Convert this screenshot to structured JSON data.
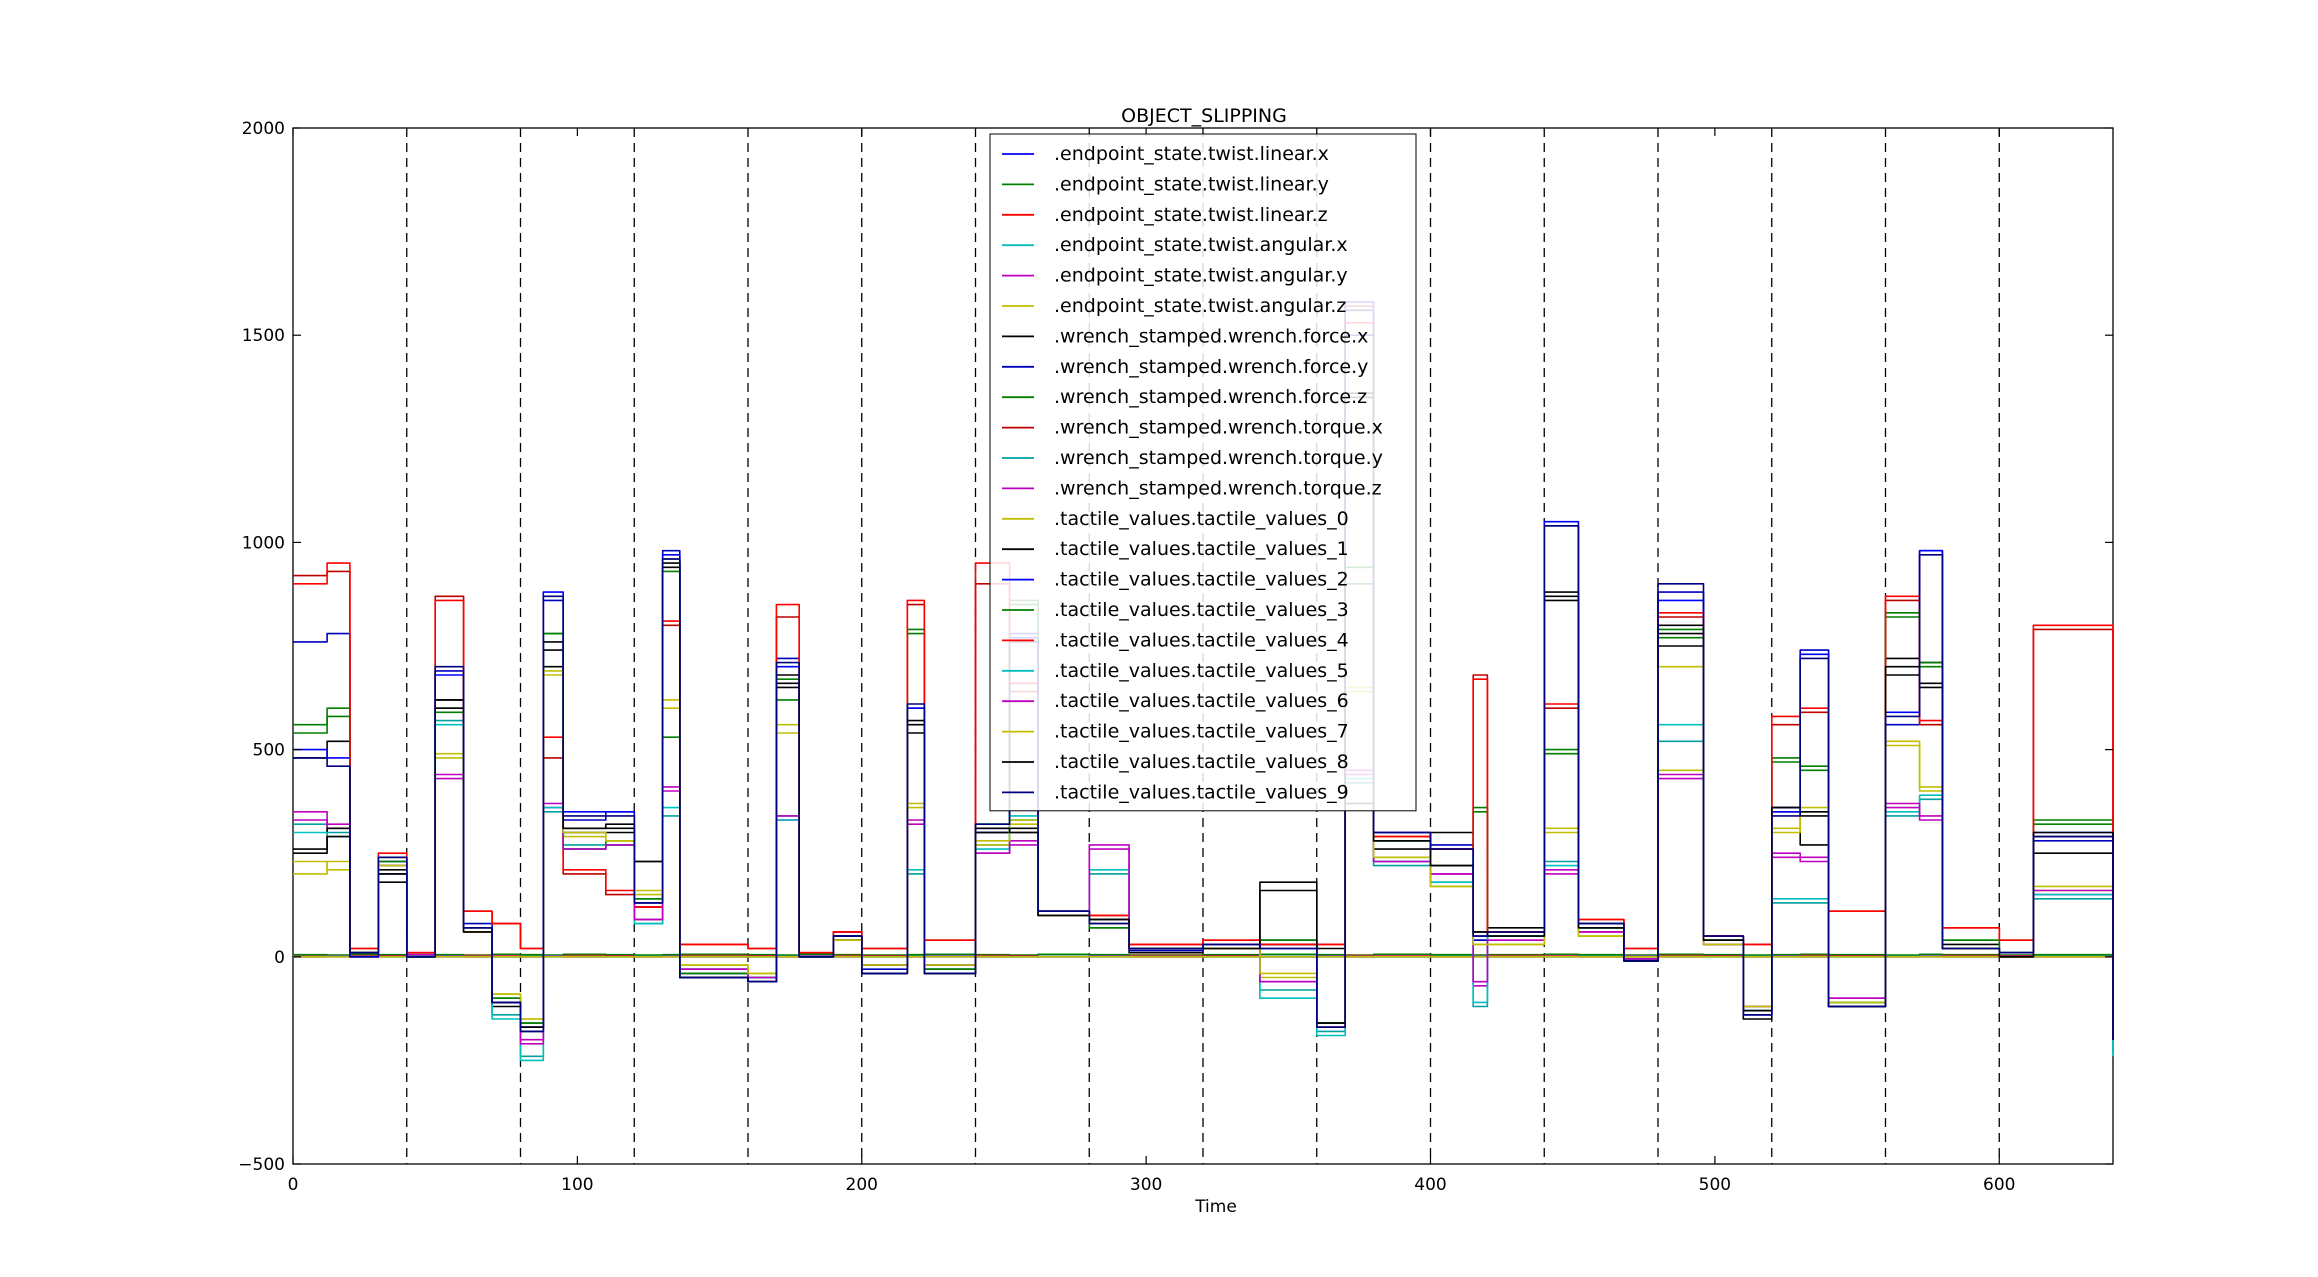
{
  "chart_data": {
    "type": "line",
    "title": "OBJECT_SLIPPING",
    "xlabel": "Time",
    "ylabel": "",
    "xlim": [
      0,
      640
    ],
    "ylim": [
      -500,
      2000
    ],
    "xticks": [
      0,
      100,
      200,
      300,
      400,
      500,
      600
    ],
    "yticks": [
      -500,
      0,
      500,
      1000,
      1500,
      2000
    ],
    "xtick_labels": [
      "0",
      "100",
      "200",
      "300",
      "400",
      "500",
      "600"
    ],
    "ytick_labels": [
      "−500",
      "0",
      "500",
      "1000",
      "1500",
      "2000"
    ],
    "grid": false,
    "legend_position": "upper-center",
    "vertical_dashed_lines": [
      40,
      80,
      120,
      160,
      200,
      240,
      280,
      320,
      360,
      400,
      440,
      480,
      520,
      560,
      600
    ],
    "segment_boundaries": [
      0,
      12,
      20,
      30,
      40,
      50,
      60,
      70,
      80,
      88,
      95,
      110,
      120,
      130,
      136,
      160,
      170,
      178,
      190,
      200,
      216,
      222,
      240,
      252,
      262,
      280,
      294,
      320,
      340,
      360,
      370,
      380,
      400,
      415,
      420,
      440,
      452,
      468,
      480,
      496,
      510,
      520,
      530,
      540,
      560,
      572,
      580,
      600,
      612,
      640
    ],
    "series": [
      {
        "name": ".endpoint_state.twist.linear.x",
        "color": "#0000ff",
        "values": [
          0,
          0,
          0,
          0,
          0,
          0,
          0,
          0,
          0,
          0,
          0,
          0,
          0,
          0,
          0,
          0,
          0,
          0,
          0,
          0,
          0,
          0,
          0,
          0,
          0,
          0,
          0,
          0,
          0,
          0,
          0,
          0,
          0,
          0,
          0,
          0,
          0,
          0,
          0,
          0,
          0,
          0,
          0,
          0,
          0,
          0,
          0,
          0,
          0,
          0
        ]
      },
      {
        "name": ".endpoint_state.twist.linear.y",
        "color": "#008000",
        "values": [
          5,
          4,
          6,
          5,
          3,
          5,
          4,
          6,
          5,
          4,
          6,
          5,
          4,
          5,
          6,
          5,
          4,
          6,
          5,
          4,
          5,
          6,
          5,
          4,
          6,
          5,
          4,
          5,
          6,
          5,
          4,
          6,
          5,
          4,
          5,
          6,
          5,
          4,
          6,
          5,
          4,
          5,
          6,
          5,
          4,
          6,
          5,
          4,
          5,
          6
        ]
      },
      {
        "name": ".endpoint_state.twist.linear.z",
        "color": "#ff0000",
        "values": [
          2,
          1,
          3,
          2,
          1,
          2,
          3,
          2,
          1,
          2,
          3,
          2,
          1,
          2,
          3,
          2,
          1,
          2,
          3,
          2,
          1,
          2,
          3,
          2,
          1,
          2,
          3,
          2,
          1,
          2,
          3,
          2,
          1,
          2,
          3,
          2,
          1,
          2,
          3,
          2,
          1,
          2,
          3,
          2,
          1,
          2,
          3,
          2,
          1,
          2
        ]
      },
      {
        "name": ".endpoint_state.twist.angular.x",
        "color": "#00bfbf",
        "values": [
          1,
          2,
          1,
          0,
          1,
          2,
          1,
          0,
          1,
          2,
          1,
          0,
          1,
          2,
          1,
          0,
          1,
          2,
          1,
          0,
          1,
          2,
          1,
          0,
          1,
          2,
          1,
          0,
          1,
          2,
          1,
          0,
          1,
          2,
          1,
          0,
          1,
          2,
          1,
          0,
          1,
          2,
          1,
          0,
          1,
          2,
          1,
          0,
          1,
          2
        ]
      },
      {
        "name": ".endpoint_state.twist.angular.y",
        "color": "#bf00bf",
        "values": [
          0,
          1,
          0,
          1,
          0,
          1,
          0,
          1,
          0,
          1,
          0,
          1,
          0,
          1,
          0,
          1,
          0,
          1,
          0,
          1,
          0,
          1,
          0,
          1,
          0,
          1,
          0,
          1,
          0,
          1,
          0,
          1,
          0,
          1,
          0,
          1,
          0,
          1,
          0,
          1,
          0,
          1,
          0,
          1,
          0,
          1,
          0,
          1,
          0,
          1
        ]
      },
      {
        "name": ".endpoint_state.twist.angular.z",
        "color": "#bfbf00",
        "values": [
          0,
          0,
          0,
          0,
          0,
          0,
          0,
          0,
          0,
          0,
          0,
          0,
          0,
          0,
          0,
          0,
          0,
          0,
          0,
          0,
          0,
          0,
          0,
          0,
          0,
          0,
          0,
          0,
          0,
          0,
          0,
          0,
          0,
          0,
          0,
          0,
          0,
          0,
          0,
          0,
          0,
          0,
          0,
          0,
          0,
          0,
          0,
          0,
          0,
          0
        ]
      },
      {
        "name": ".wrench_stamped.wrench.force.x",
        "color": "#000000",
        "values": [
          480,
          520,
          0,
          180,
          0,
          620,
          70,
          -120,
          -180,
          700,
          310,
          310,
          90,
          940,
          -50,
          -50,
          680,
          0,
          50,
          -40,
          540,
          -40,
          300,
          310,
          100,
          90,
          10,
          30,
          160,
          20,
          370,
          260,
          300,
          40,
          70,
          860,
          70,
          -5,
          750,
          40,
          -150,
          360,
          270,
          -120,
          680,
          710,
          30,
          0,
          250,
          20
        ]
      },
      {
        "name": ".wrench_stamped.wrench.force.y",
        "color": "#0000bf",
        "values": [
          760,
          780,
          0,
          200,
          0,
          690,
          80,
          -110,
          -170,
          860,
          330,
          350,
          120,
          980,
          -40,
          -60,
          720,
          0,
          60,
          -30,
          600,
          -30,
          300,
          780,
          110,
          80,
          15,
          20,
          40,
          -170,
          1500,
          300,
          270,
          40,
          60,
          1040,
          80,
          -10,
          880,
          50,
          -140,
          360,
          740,
          -120,
          560,
          980,
          20,
          10,
          280,
          -200
        ]
      },
      {
        "name": ".wrench_stamped.wrench.force.z",
        "color": "#007f00",
        "values": [
          540,
          600,
          10,
          240,
          5,
          590,
          60,
          -100,
          -160,
          780,
          260,
          280,
          140,
          930,
          -40,
          -50,
          670,
          0,
          40,
          -20,
          780,
          -30,
          320,
          860,
          100,
          70,
          20,
          30,
          40,
          -160,
          900,
          280,
          260,
          350,
          60,
          490,
          80,
          -10,
          770,
          40,
          -130,
          470,
          450,
          -110,
          820,
          710,
          40,
          10,
          320,
          -190
        ]
      },
      {
        "name": ".wrench_stamped.wrench.torque.x",
        "color": "#bf0000",
        "values": [
          920,
          930,
          20,
          240,
          10,
          870,
          110,
          80,
          20,
          480,
          200,
          150,
          120,
          800,
          30,
          20,
          820,
          10,
          60,
          20,
          850,
          40,
          900,
          640,
          110,
          100,
          30,
          40,
          30,
          30,
          1570,
          290,
          260,
          680,
          60,
          600,
          90,
          20,
          820,
          50,
          30,
          560,
          590,
          110,
          860,
          560,
          70,
          40,
          790,
          60
        ]
      },
      {
        "name": ".wrench_stamped.wrench.torque.y",
        "color": "#00a0a0",
        "values": [
          320,
          300,
          10,
          230,
          0,
          570,
          60,
          -140,
          -240,
          350,
          270,
          270,
          80,
          340,
          -30,
          -50,
          340,
          0,
          40,
          -20,
          200,
          -20,
          270,
          330,
          110,
          200,
          20,
          30,
          -80,
          -180,
          420,
          220,
          180,
          -120,
          50,
          230,
          70,
          -5,
          520,
          30,
          -130,
          130,
          130,
          -110,
          340,
          380,
          20,
          0,
          140,
          -230
        ]
      },
      {
        "name": ".wrench_stamped.wrench.torque.z",
        "color": "#bf00bf",
        "values": [
          330,
          310,
          10,
          220,
          5,
          430,
          60,
          -110,
          -200,
          360,
          260,
          270,
          90,
          400,
          -30,
          -50,
          330,
          0,
          40,
          -20,
          320,
          -20,
          250,
          270,
          100,
          260,
          20,
          30,
          -60,
          -170,
          440,
          230,
          200,
          -70,
          40,
          200,
          60,
          -5,
          430,
          30,
          -120,
          240,
          230,
          -100,
          360,
          330,
          20,
          0,
          150,
          -200
        ]
      },
      {
        "name": ".tactile_values.tactile_values_0",
        "color": "#bfbf00",
        "values": [
          230,
          210,
          10,
          230,
          0,
          490,
          60,
          -90,
          -150,
          680,
          290,
          280,
          150,
          600,
          -20,
          -40,
          560,
          0,
          40,
          -20,
          360,
          -20,
          270,
          320,
          100,
          80,
          20,
          20,
          -50,
          -170,
          650,
          240,
          170,
          30,
          30,
          300,
          50,
          0,
          450,
          30,
          -120,
          300,
          350,
          -110,
          520,
          400,
          20,
          0,
          160,
          -180
        ]
      },
      {
        "name": ".tactile_values.tactile_values_1",
        "color": "#000000",
        "values": [
          260,
          310,
          10,
          210,
          0,
          620,
          60,
          -110,
          -170,
          740,
          300,
          300,
          230,
          960,
          -50,
          -60,
          650,
          0,
          50,
          -40,
          560,
          -40,
          300,
          300,
          100,
          90,
          20,
          20,
          30,
          -160,
          1360,
          280,
          220,
          60,
          50,
          880,
          70,
          -10,
          780,
          40,
          -130,
          350,
          340,
          -120,
          720,
          650,
          20,
          0,
          290,
          -200
        ]
      },
      {
        "name": ".tactile_values.tactile_values_2",
        "color": "#0000ff",
        "values": [
          500,
          480,
          10,
          230,
          0,
          680,
          70,
          -110,
          -170,
          880,
          350,
          350,
          130,
          970,
          -50,
          -60,
          700,
          0,
          50,
          -40,
          600,
          -40,
          310,
          770,
          110,
          80,
          20,
          30,
          20,
          -170,
          1580,
          300,
          260,
          50,
          60,
          1050,
          80,
          -10,
          860,
          50,
          -140,
          350,
          730,
          -120,
          590,
          980,
          20,
          10,
          300,
          -200
        ]
      },
      {
        "name": ".tactile_values.tactile_values_3",
        "color": "#007f00",
        "values": [
          560,
          580,
          10,
          230,
          0,
          600,
          60,
          -100,
          -160,
          780,
          260,
          270,
          140,
          530,
          -40,
          -50,
          620,
          0,
          40,
          -20,
          790,
          -30,
          320,
          850,
          100,
          70,
          20,
          30,
          40,
          -160,
          940,
          280,
          260,
          360,
          60,
          500,
          80,
          -10,
          790,
          40,
          -130,
          480,
          460,
          -110,
          830,
          700,
          40,
          10,
          330,
          -190
        ]
      },
      {
        "name": ".tactile_values.tactile_values_4",
        "color": "#ff0000",
        "values": [
          900,
          950,
          20,
          250,
          10,
          860,
          110,
          80,
          20,
          530,
          210,
          160,
          120,
          810,
          30,
          20,
          850,
          10,
          60,
          20,
          860,
          40,
          950,
          660,
          110,
          100,
          30,
          40,
          30,
          30,
          1530,
          290,
          260,
          670,
          60,
          610,
          90,
          20,
          830,
          50,
          30,
          580,
          600,
          110,
          870,
          570,
          70,
          40,
          800,
          60
        ]
      },
      {
        "name": ".tactile_values.tactile_values_5",
        "color": "#00bfbf",
        "values": [
          300,
          290,
          10,
          220,
          0,
          560,
          60,
          -150,
          -250,
          360,
          260,
          270,
          80,
          360,
          -30,
          -50,
          330,
          0,
          40,
          -20,
          210,
          -20,
          260,
          340,
          110,
          210,
          20,
          30,
          -100,
          -190,
          430,
          230,
          180,
          -110,
          50,
          220,
          70,
          -5,
          560,
          30,
          -130,
          140,
          140,
          -110,
          350,
          390,
          20,
          0,
          150,
          -240
        ]
      },
      {
        "name": ".tactile_values.tactile_values_6",
        "color": "#bf00bf",
        "values": [
          350,
          320,
          10,
          220,
          5,
          440,
          60,
          -110,
          -210,
          370,
          260,
          270,
          90,
          410,
          -30,
          -50,
          340,
          0,
          40,
          -20,
          330,
          -20,
          250,
          280,
          100,
          270,
          20,
          30,
          -60,
          -170,
          450,
          230,
          200,
          -60,
          40,
          210,
          60,
          -5,
          440,
          30,
          -120,
          250,
          240,
          -100,
          370,
          340,
          20,
          0,
          160,
          -200
        ]
      },
      {
        "name": ".tactile_values.tactile_values_7",
        "color": "#bfbf00",
        "values": [
          200,
          230,
          10,
          220,
          0,
          480,
          60,
          -90,
          -150,
          690,
          300,
          280,
          160,
          620,
          -20,
          -40,
          540,
          0,
          40,
          -20,
          370,
          -20,
          280,
          330,
          100,
          80,
          20,
          20,
          -40,
          -170,
          640,
          240,
          170,
          30,
          30,
          310,
          50,
          0,
          700,
          30,
          -120,
          310,
          360,
          -110,
          510,
          410,
          20,
          0,
          170,
          -180
        ]
      },
      {
        "name": ".tactile_values.tactile_values_8",
        "color": "#000000",
        "values": [
          250,
          290,
          10,
          200,
          0,
          600,
          60,
          -110,
          -170,
          760,
          310,
          320,
          230,
          950,
          -50,
          -60,
          660,
          0,
          50,
          -40,
          570,
          -40,
          310,
          300,
          100,
          90,
          20,
          20,
          180,
          -160,
          1350,
          280,
          220,
          60,
          50,
          870,
          70,
          -10,
          800,
          40,
          -130,
          360,
          350,
          -120,
          700,
          660,
          20,
          0,
          300,
          -200
        ]
      },
      {
        "name": ".tactile_values.tactile_values_9",
        "color": "#00007f",
        "values": [
          480,
          460,
          10,
          240,
          0,
          700,
          70,
          -110,
          -180,
          870,
          340,
          340,
          130,
          960,
          -50,
          -60,
          710,
          0,
          50,
          -40,
          610,
          -40,
          320,
          760,
          110,
          80,
          20,
          30,
          20,
          -170,
          1560,
          300,
          260,
          50,
          60,
          1040,
          80,
          -10,
          900,
          50,
          -140,
          340,
          720,
          -120,
          580,
          970,
          20,
          10,
          290,
          -200
        ]
      }
    ]
  }
}
